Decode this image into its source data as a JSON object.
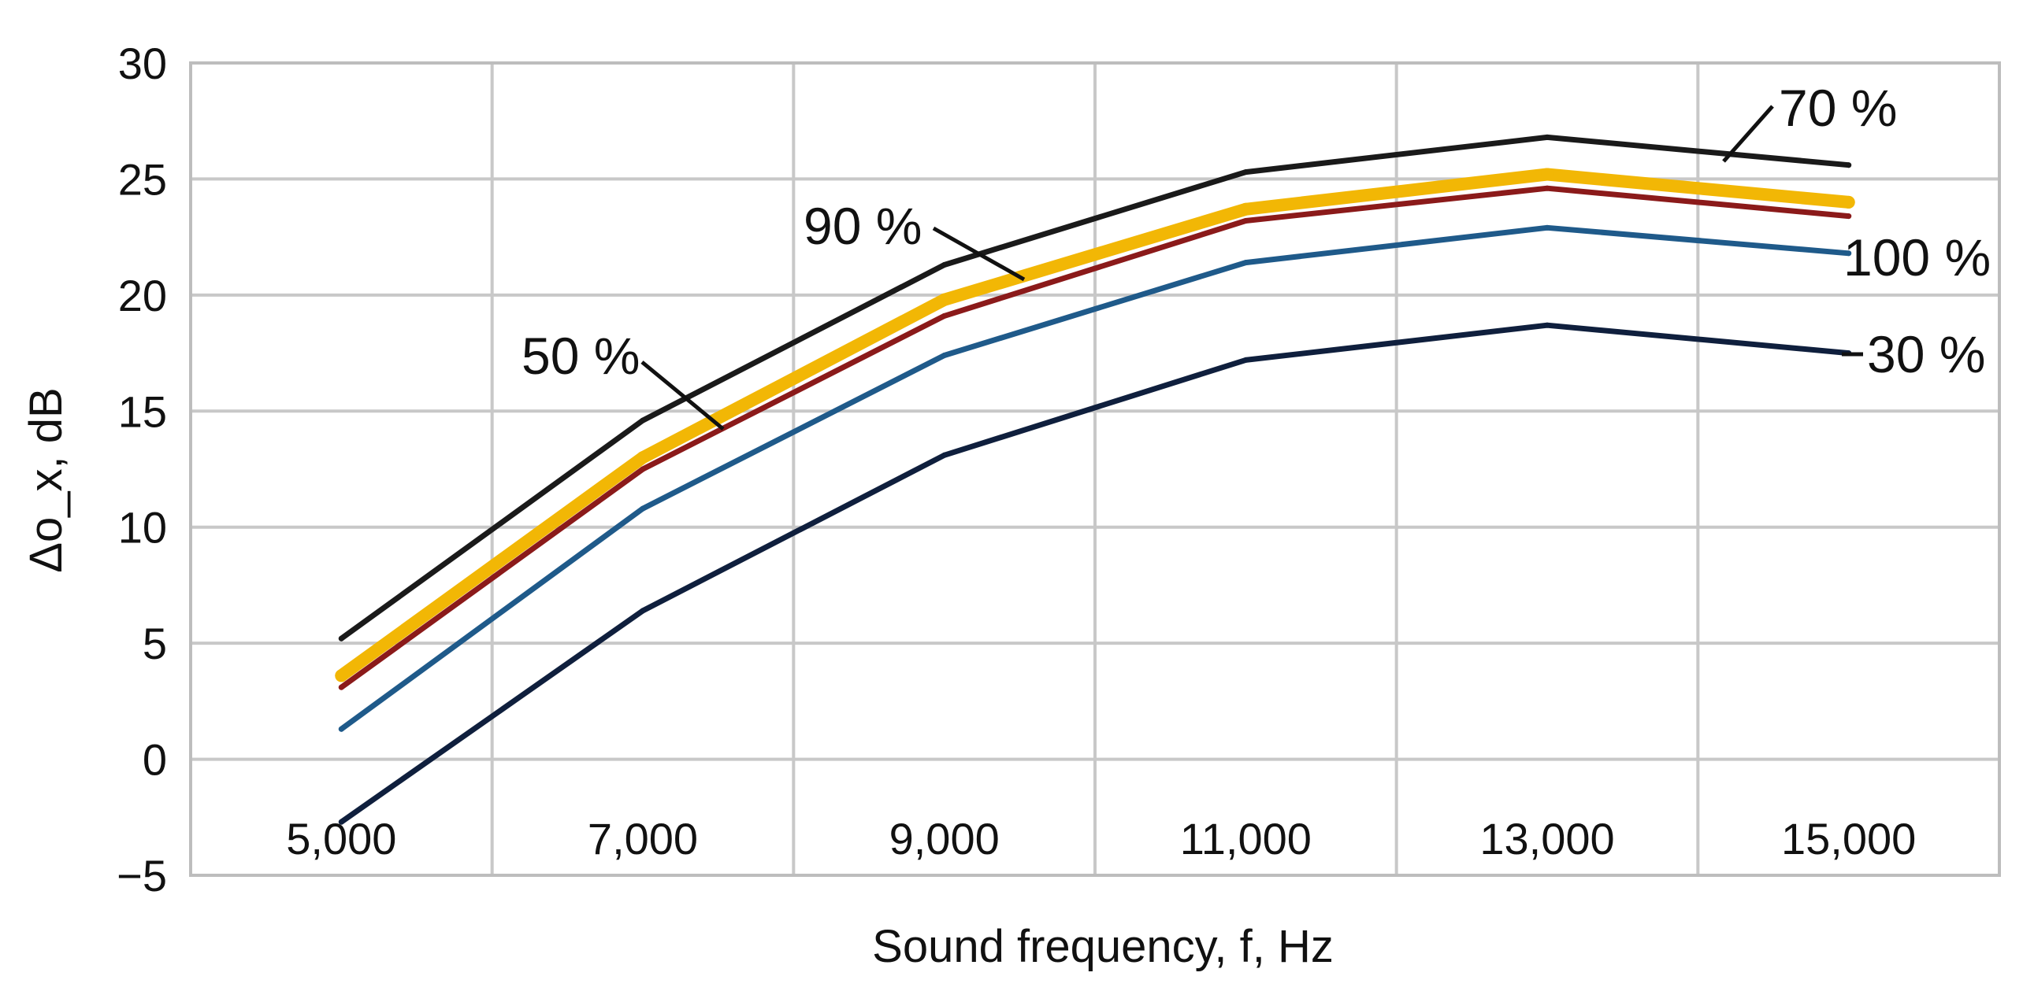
{
  "chart_data": {
    "type": "line",
    "title": "",
    "xlabel": "Sound frequency, f, Hz",
    "ylabel": "Δo_x, dB",
    "x": [
      5000,
      7000,
      9000,
      11000,
      13000,
      15000
    ],
    "x_tick_labels": [
      "5,000",
      "7,000",
      "9,000",
      "11,000",
      "13,000",
      "15,000"
    ],
    "ylim": [
      -5,
      30
    ],
    "y_ticks": [
      30,
      25,
      20,
      15,
      10,
      5,
      0,
      -5
    ],
    "y_tick_labels": [
      "30",
      "25",
      "20",
      "15",
      "10",
      "5",
      "0",
      "−5"
    ],
    "grid": true,
    "series": [
      {
        "name": "70 %",
        "label": "70 %",
        "color": "#1a1a1a",
        "values": [
          5.2,
          14.6,
          21.3,
          25.3,
          26.8,
          25.6
        ]
      },
      {
        "name": "90 %",
        "label": "90 %",
        "color": "#f2b705",
        "values": [
          3.6,
          13.0,
          19.8,
          23.7,
          25.2,
          24.0
        ]
      },
      {
        "name": "50 %",
        "label": "50 %",
        "color": "#8b1a1a",
        "values": [
          3.1,
          12.5,
          19.1,
          23.2,
          24.6,
          23.4
        ]
      },
      {
        "name": "100 %",
        "label": "100 %",
        "color": "#1f5a8a",
        "values": [
          1.3,
          10.8,
          17.4,
          21.4,
          22.9,
          21.8
        ]
      },
      {
        "name": "30 %",
        "label": "30 %",
        "color": "#0f1f3d",
        "values": [
          -2.7,
          6.4,
          13.1,
          17.2,
          18.7,
          17.5
        ]
      }
    ]
  }
}
